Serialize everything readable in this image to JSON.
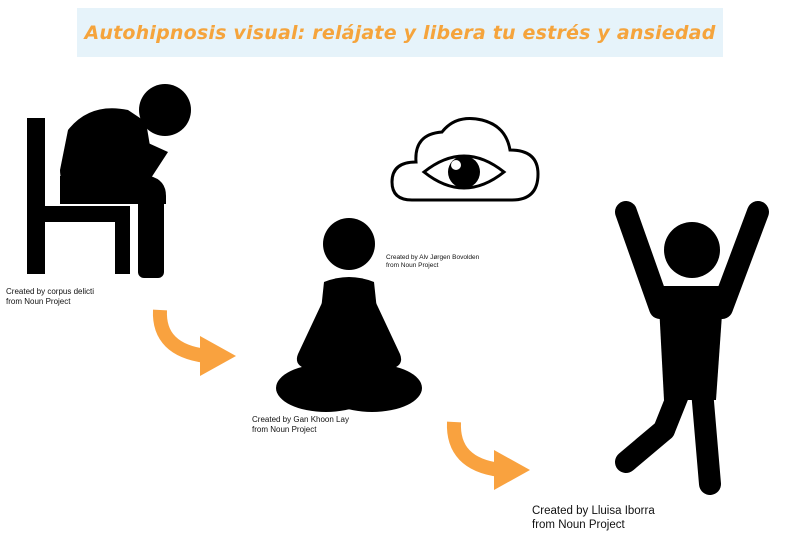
{
  "title": "Autohipnosis visual: relájate y libera tu estrés y ansiedad",
  "colors": {
    "title_text": "#f5a43c",
    "banner_bg": "#e6f3fa",
    "figure": "#000000",
    "arrow": "#f9a23f"
  },
  "icons": [
    "stressed-person-on-chair-icon",
    "eye-cloud-icon",
    "meditating-person-icon",
    "joyful-person-icon",
    "curved-arrow-icon"
  ],
  "credits": {
    "stressed": {
      "line1": "Created by corpus delicti",
      "line2": "from Noun Project"
    },
    "eye": {
      "line1": "Created by Alv Jørgen Bovolden",
      "line2": "from Noun Project"
    },
    "meditating": {
      "line1": "Created by Gan Khoon Lay",
      "line2": "from Noun Project"
    },
    "joyful": {
      "line1": "Created by Lluisa Iborra",
      "line2": "from Noun Project"
    }
  }
}
